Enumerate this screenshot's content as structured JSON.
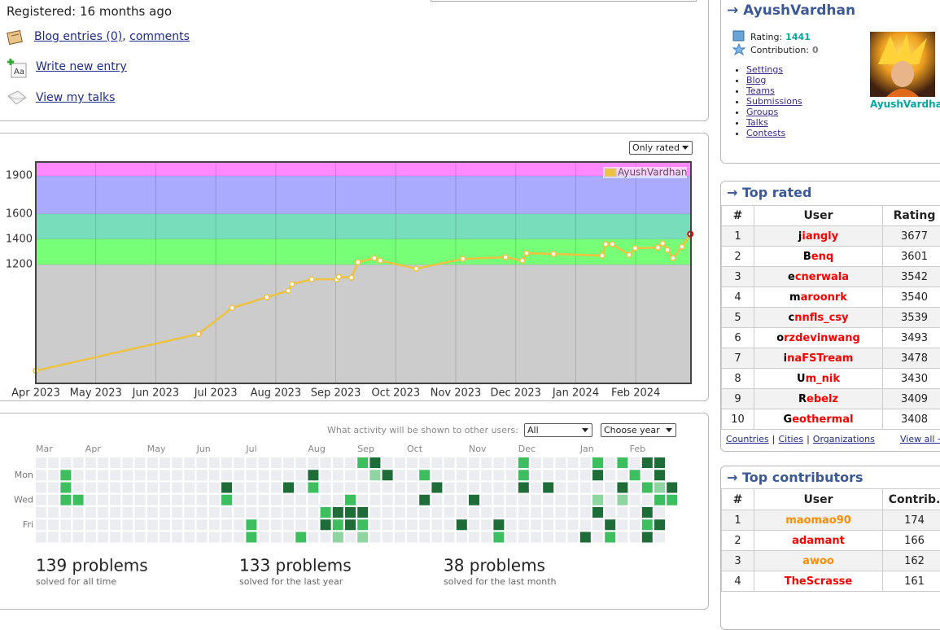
{
  "profile": {
    "registered": "Registered: 16 months ago",
    "blog_entries": "Blog entries (0)",
    "separator": ",",
    "comments": "comments",
    "write_entry": "Write new entry",
    "view_talks": "View my talks"
  },
  "chart_data": {
    "type": "line",
    "filter": "Only rated",
    "x": [
      0,
      2.71,
      3.27,
      3.85,
      4.21,
      4.27,
      4.6,
      5.02,
      5.05,
      5.26,
      5.37,
      5.64,
      5.74,
      6.34,
      7.12,
      7.83,
      8.11,
      8.18,
      8.63,
      9.44,
      9.5,
      9.61,
      9.89,
      9.99,
      10.37,
      10.45,
      10.53,
      10.62,
      10.77,
      10.91
    ],
    "series": [
      {
        "name": "AyushVardhan",
        "color": "#edc240",
        "values": [
          364,
          653,
          859,
          943,
          994,
          1046,
          1084,
          1084,
          1104,
          1097,
          1219,
          1251,
          1232,
          1168,
          1245,
          1258,
          1232,
          1290,
          1284,
          1271,
          1361,
          1361,
          1277,
          1329,
          1335,
          1367,
          1316,
          1251,
          1341,
          1441
        ]
      }
    ],
    "highlight_color": "#dd0000",
    "xlim": [
      0,
      10.92
    ],
    "xticks": [
      {
        "value": 0,
        "label": "Apr 2023"
      },
      {
        "value": 1,
        "label": "May 2023"
      },
      {
        "value": 2,
        "label": "Jun 2023"
      },
      {
        "value": 3,
        "label": "Jul 2023"
      },
      {
        "value": 4,
        "label": "Aug 2023"
      },
      {
        "value": 5,
        "label": "Sep 2023"
      },
      {
        "value": 6,
        "label": "Oct 2023"
      },
      {
        "value": 7,
        "label": "Nov 2023"
      },
      {
        "value": 8,
        "label": "Dec 2023"
      },
      {
        "value": 9,
        "label": "Jan 2024"
      },
      {
        "value": 10,
        "label": "Feb 2024"
      }
    ],
    "ylim": [
      264,
      2009
    ],
    "yticks": [
      1200,
      1400,
      1600,
      1900
    ],
    "plot_background": "#cccccc",
    "bands": [
      {
        "from": 1900,
        "color": "#ff88ff"
      },
      {
        "from": 1600,
        "color": "#aaaaff"
      },
      {
        "from": 1400,
        "color": "#77ddbb"
      },
      {
        "from": 1200,
        "color": "#77ff77"
      }
    ],
    "grid": true,
    "legend": "upper right"
  },
  "activity": {
    "label": "What activity will be shown to other users:",
    "visibility": "All",
    "year": "Choose year",
    "months": [
      "Mar",
      "Apr",
      "May",
      "Jun",
      "Jul",
      "Aug",
      "Sep",
      "Oct",
      "Nov",
      "Dec",
      "Jan",
      "Feb"
    ],
    "days": [
      "Mon",
      "Wed",
      "Fri"
    ],
    "level_colors": [
      "#ebedf0",
      "#8fd5a2",
      "#3dbf60",
      "#1e6c38"
    ],
    "levels": [
      [
        0,
        0,
        0,
        0,
        0,
        0,
        0,
        0,
        0,
        0,
        0,
        0,
        0,
        0,
        0,
        0,
        0,
        0,
        0,
        0,
        0,
        0,
        0,
        0,
        0,
        0,
        2,
        3,
        0,
        0,
        0,
        0,
        0,
        0,
        0,
        0,
        0,
        0,
        0,
        2,
        0,
        0,
        0,
        0,
        0,
        2,
        0,
        2,
        0,
        3,
        3,
        null
      ],
      [
        0,
        0,
        2,
        0,
        0,
        0,
        0,
        0,
        0,
        0,
        0,
        0,
        0,
        0,
        0,
        0,
        0,
        0,
        0,
        0,
        0,
        0,
        3,
        0,
        0,
        0,
        0,
        1,
        3,
        0,
        0,
        2,
        0,
        0,
        0,
        0,
        0,
        0,
        0,
        2,
        0,
        0,
        0,
        0,
        0,
        3,
        0,
        0,
        2,
        0,
        3,
        null
      ],
      [
        0,
        0,
        2,
        0,
        0,
        0,
        0,
        0,
        0,
        0,
        0,
        0,
        0,
        0,
        0,
        3,
        0,
        0,
        0,
        0,
        3,
        0,
        2,
        0,
        0,
        0,
        0,
        0,
        0,
        0,
        0,
        0,
        3,
        0,
        0,
        0,
        0,
        0,
        0,
        3,
        0,
        3,
        0,
        0,
        0,
        0,
        0,
        3,
        0,
        2,
        1,
        3
      ],
      [
        0,
        0,
        2,
        2,
        0,
        0,
        0,
        0,
        0,
        0,
        0,
        0,
        0,
        0,
        0,
        2,
        0,
        0,
        0,
        0,
        0,
        0,
        0,
        0,
        0,
        2,
        0,
        0,
        0,
        0,
        0,
        3,
        0,
        0,
        0,
        3,
        0,
        0,
        0,
        0,
        0,
        0,
        0,
        0,
        0,
        1,
        0,
        1,
        0,
        0,
        2,
        2
      ],
      [
        0,
        0,
        0,
        0,
        0,
        0,
        0,
        0,
        0,
        0,
        0,
        0,
        0,
        0,
        0,
        0,
        0,
        0,
        0,
        0,
        0,
        0,
        0,
        2,
        3,
        3,
        3,
        0,
        0,
        0,
        0,
        0,
        0,
        0,
        0,
        0,
        0,
        0,
        0,
        0,
        0,
        0,
        0,
        0,
        0,
        3,
        0,
        0,
        0,
        3,
        0,
        null
      ],
      [
        0,
        0,
        0,
        0,
        0,
        0,
        0,
        0,
        0,
        0,
        0,
        0,
        0,
        0,
        0,
        0,
        0,
        2,
        0,
        0,
        0,
        0,
        0,
        3,
        2,
        3,
        2,
        0,
        0,
        0,
        0,
        0,
        0,
        0,
        3,
        0,
        0,
        3,
        0,
        0,
        0,
        0,
        0,
        0,
        0,
        0,
        3,
        0,
        0,
        2,
        3,
        null
      ],
      [
        0,
        0,
        0,
        0,
        0,
        0,
        0,
        0,
        0,
        0,
        0,
        0,
        0,
        0,
        0,
        0,
        0,
        2,
        0,
        0,
        0,
        2,
        0,
        0,
        1,
        0,
        1,
        0,
        0,
        0,
        0,
        0,
        0,
        0,
        0,
        0,
        0,
        2,
        0,
        0,
        0,
        0,
        0,
        0,
        3,
        0,
        2,
        0,
        0,
        3,
        0,
        null
      ]
    ],
    "stats": [
      {
        "count": "139 problems",
        "caption": "solved for all time"
      },
      {
        "count": "133 problems",
        "caption": "solved for the last year"
      },
      {
        "count": "38 problems",
        "caption": "solved for the last month"
      }
    ]
  },
  "user_box": {
    "title": "→ AyushVardhan",
    "rating_label": "Rating:",
    "rating": 1441,
    "contribution_label": "Contribution:",
    "contribution": 0,
    "menu": [
      "Settings",
      "Blog",
      "Teams",
      "Submissions",
      "Groups",
      "Talks",
      "Contests"
    ],
    "name": "AyushVardhan"
  },
  "top_rated": {
    "title": "→ Top rated",
    "columns": [
      "#",
      "User",
      "Rating"
    ],
    "first_letter_color": "#000000",
    "rows": [
      {
        "rank": 1,
        "user": "jiangly",
        "value": 3677,
        "color": "#ff0000"
      },
      {
        "rank": 2,
        "user": "Benq",
        "value": 3601,
        "color": "#ff0000"
      },
      {
        "rank": 3,
        "user": "ecnerwala",
        "value": 3542,
        "color": "#ff0000"
      },
      {
        "rank": 4,
        "user": "maroonrk",
        "value": 3540,
        "color": "#ff0000"
      },
      {
        "rank": 5,
        "user": "cnnfls_csy",
        "value": 3539,
        "color": "#ff0000"
      },
      {
        "rank": 6,
        "user": "orzdevinwang",
        "value": 3493,
        "color": "#ff0000"
      },
      {
        "rank": 7,
        "user": "inaFSTream",
        "value": 3478,
        "color": "#ff0000"
      },
      {
        "rank": 8,
        "user": "Um_nik",
        "value": 3430,
        "color": "#ff0000"
      },
      {
        "rank": 9,
        "user": "Rebelz",
        "value": 3409,
        "color": "#ff0000"
      },
      {
        "rank": 10,
        "user": "Geothermal",
        "value": 3408,
        "color": "#ff0000"
      }
    ],
    "footer_links": [
      "Countries",
      "Cities",
      "Organizations"
    ],
    "footer_separator": "|",
    "view_all": "View all →"
  },
  "top_contributors": {
    "title": "→ Top contributors",
    "columns": [
      "#",
      "User",
      "Contrib."
    ],
    "rows": [
      {
        "rank": 1,
        "user": "maomao90",
        "value": 174,
        "color": "#ff8c00"
      },
      {
        "rank": 2,
        "user": "adamant",
        "value": 166,
        "color": "#ff0000"
      },
      {
        "rank": 3,
        "user": "awoo",
        "value": 162,
        "color": "#ff8c00"
      },
      {
        "rank": 4,
        "user": "TheScrasse",
        "value": 161,
        "color": "#ff0000"
      }
    ]
  }
}
